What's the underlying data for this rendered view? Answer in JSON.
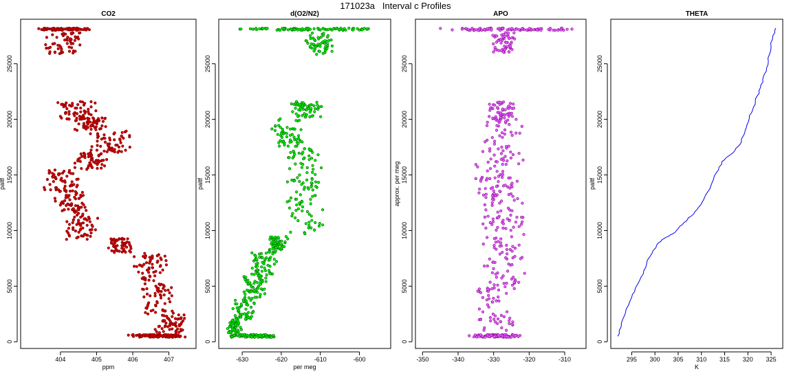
{
  "figure_title": "171023a   Interval c Profiles",
  "chart_data": [
    {
      "type": "scatter",
      "title": "CO2",
      "xlabel": "ppm",
      "ylabel": "paltf",
      "xlim": [
        402.9,
        407.75
      ],
      "ylim": [
        -600,
        29000
      ],
      "xticks": [
        404,
        405,
        406,
        407
      ],
      "yticks": [
        0,
        5000,
        10000,
        15000,
        20000,
        25000
      ],
      "colors": {
        "point": "#cc0000",
        "outline": "#800000"
      },
      "series": [
        {
          "values": []
        }
      ],
      "segments": [
        {
          "y": [
            28000,
            28200
          ],
          "x": [
            403.3,
            405.0
          ],
          "dense": 1
        },
        {
          "y": [
            25900,
            27800
          ],
          "x": [
            403.5,
            404.8
          ]
        },
        {
          "y": [
            20000,
            21600
          ],
          "x": [
            403.8,
            405.0
          ]
        },
        {
          "y": [
            19000,
            20200
          ],
          "x": [
            404.3,
            405.4
          ]
        },
        {
          "y": [
            17000,
            19000
          ],
          "x": [
            404.8,
            406.0
          ]
        },
        {
          "y": [
            15500,
            17000
          ],
          "x": [
            404.3,
            405.4
          ]
        },
        {
          "y": [
            13500,
            15500
          ],
          "x": [
            403.5,
            404.6
          ]
        },
        {
          "y": [
            11500,
            13500
          ],
          "x": [
            403.8,
            404.8
          ]
        },
        {
          "y": [
            9200,
            11500
          ],
          "x": [
            404.1,
            405.1
          ]
        },
        {
          "y": [
            8000,
            9300
          ],
          "x": [
            405.3,
            406.0
          ]
        },
        {
          "y": [
            5500,
            8000
          ],
          "x": [
            406.0,
            407.0
          ]
        },
        {
          "y": [
            2500,
            5500
          ],
          "x": [
            406.2,
            407.2
          ]
        },
        {
          "y": [
            800,
            2500
          ],
          "x": [
            406.6,
            407.5
          ]
        },
        {
          "y": [
            400,
            650
          ],
          "x": [
            405.8,
            407.5
          ],
          "dense": 1
        }
      ]
    },
    {
      "type": "scatter",
      "title": "d(O2/N2)",
      "xlabel": "per meg",
      "ylabel": "paltf",
      "xlim": [
        -636,
        -592
      ],
      "ylim": [
        -600,
        29000
      ],
      "xticks": [
        -630,
        -620,
        -610,
        -600
      ],
      "yticks": [
        0,
        5000,
        10000,
        15000,
        20000,
        25000
      ],
      "colors": {
        "point": "#00ee00",
        "outline": "#006400"
      },
      "series": [
        {
          "values": []
        }
      ],
      "segments": [
        {
          "y": [
            28000,
            28200
          ],
          "x": [
            -634,
            -596
          ],
          "dense": 1
        },
        {
          "y": [
            25800,
            27800
          ],
          "x": [
            -614,
            -606
          ]
        },
        {
          "y": [
            20200,
            21600
          ],
          "x": [
            -618,
            -609
          ]
        },
        {
          "y": [
            17500,
            20200
          ],
          "x": [
            -623,
            -614
          ]
        },
        {
          "y": [
            14000,
            17500
          ],
          "x": [
            -619,
            -609
          ]
        },
        {
          "y": [
            9500,
            14000
          ],
          "x": [
            -619,
            -609
          ]
        },
        {
          "y": [
            8000,
            9500
          ],
          "x": [
            -624,
            -618
          ]
        },
        {
          "y": [
            6000,
            8000
          ],
          "x": [
            -628,
            -621
          ]
        },
        {
          "y": [
            4000,
            6000
          ],
          "x": [
            -630,
            -623
          ]
        },
        {
          "y": [
            2000,
            4000
          ],
          "x": [
            -633,
            -626
          ]
        },
        {
          "y": [
            800,
            2000
          ],
          "x": [
            -634,
            -630
          ]
        },
        {
          "y": [
            400,
            650
          ],
          "x": [
            -634,
            -620
          ],
          "dense": 1
        }
      ]
    },
    {
      "type": "scatter",
      "title": "APO",
      "xlabel": "",
      "ylabel": "approx. per meg",
      "xlim": [
        -352,
        -304
      ],
      "ylim": [
        -600,
        29000
      ],
      "xticks": [
        -350,
        -340,
        -330,
        -320,
        -310
      ],
      "yticks": [
        0,
        5000,
        10000,
        15000,
        20000,
        25000
      ],
      "colors": {
        "point": "#e066ff",
        "outline": "#8b008b"
      },
      "series": [
        {
          "values": []
        }
      ],
      "segments": [
        {
          "y": [
            28000,
            28200
          ],
          "x": [
            -347,
            -306
          ],
          "dense": 1
        },
        {
          "y": [
            26000,
            27800
          ],
          "x": [
            -331,
            -323
          ]
        },
        {
          "y": [
            20000,
            21600
          ],
          "x": [
            -333,
            -323
          ]
        },
        {
          "y": [
            16000,
            20000
          ],
          "x": [
            -334,
            -321
          ]
        },
        {
          "y": [
            13000,
            16000
          ],
          "x": [
            -337,
            -322
          ]
        },
        {
          "y": [
            9000,
            13000
          ],
          "x": [
            -334,
            -321
          ]
        },
        {
          "y": [
            5000,
            9000
          ],
          "x": [
            -334,
            -321
          ]
        },
        {
          "y": [
            1000,
            5000
          ],
          "x": [
            -335,
            -323
          ]
        },
        {
          "y": [
            400,
            650
          ],
          "x": [
            -337,
            -322
          ],
          "dense": 1
        }
      ]
    },
    {
      "type": "line",
      "title": "THETA",
      "xlabel": "K",
      "ylabel": "paltf",
      "xlim": [
        290.5,
        327.5
      ],
      "ylim": [
        -600,
        29000
      ],
      "xticks": [
        295,
        300,
        305,
        310,
        315,
        320,
        325
      ],
      "yticks": [
        0,
        5000,
        10000,
        15000,
        20000,
        25000
      ],
      "colors": {
        "line": "#0000ee"
      },
      "series": [
        {
          "x": [
            292.0,
            292.3,
            292.8,
            293.6,
            294.3,
            295.0,
            295.6,
            296.3,
            297.0,
            297.6,
            298.2,
            299.0,
            299.6,
            300.4,
            301.2,
            302.0,
            303.0,
            303.8,
            304.6,
            305.4,
            306.2,
            307.0,
            307.8,
            308.6,
            309.4,
            310.1,
            310.7,
            311.4,
            312.0,
            312.6,
            313.2,
            313.8,
            314.4,
            315.2,
            316.2,
            317.2,
            318.0,
            318.6,
            319.0,
            319.4,
            319.8,
            320.3,
            320.8,
            321.2,
            321.6,
            322.0,
            322.4,
            322.8,
            323.2,
            323.6,
            324.0,
            324.4,
            324.6,
            325.0,
            325.3,
            325.8,
            326.0
          ],
          "y": [
            500,
            1000,
            1700,
            2500,
            3300,
            4000,
            4500,
            5200,
            5800,
            6400,
            7000,
            7700,
            8200,
            8700,
            9000,
            9300,
            9500,
            9700,
            10000,
            10400,
            10700,
            11000,
            11300,
            11700,
            12100,
            12500,
            13000,
            13500,
            14000,
            14600,
            15200,
            15700,
            16200,
            16500,
            16800,
            17200,
            17600,
            18000,
            18500,
            19000,
            19500,
            20100,
            20600,
            21100,
            21600,
            22100,
            22600,
            23100,
            23600,
            24100,
            24600,
            25200,
            25800,
            26500,
            27200,
            27800,
            28200
          ]
        }
      ]
    }
  ]
}
